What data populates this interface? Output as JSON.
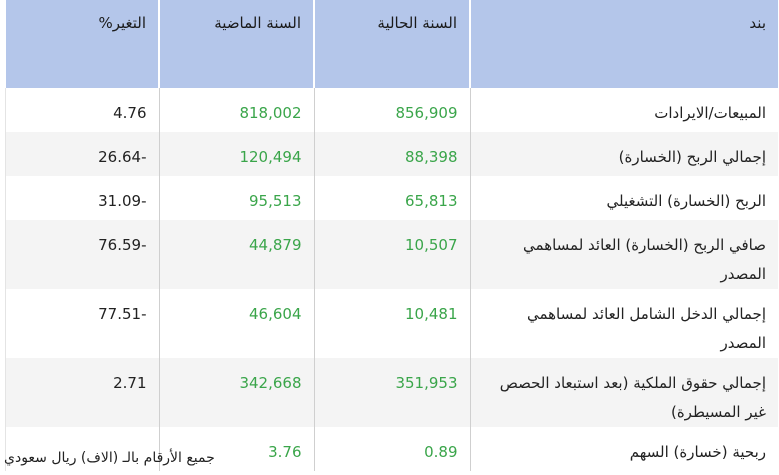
{
  "headers": {
    "item": "بند",
    "current": "السنة الحالية",
    "previous": "السنة الماضية",
    "change": "التغير%"
  },
  "rows": [
    {
      "item": "المبيعات/الايرادات",
      "current": "856,909",
      "previous": "818,002",
      "change": "4.76"
    },
    {
      "item": "إجمالي الربح (الخسارة)",
      "current": "88,398",
      "previous": "120,494",
      "change": "26.64-"
    },
    {
      "item": "الربح (الخسارة) التشغيلي",
      "current": "65,813",
      "previous": "95,513",
      "change": "31.09-"
    },
    {
      "item": "صافي الربح (الخسارة) العائد لمساهمي المصدر",
      "current": "10,507",
      "previous": "44,879",
      "change": "76.59-"
    },
    {
      "item": "إجمالي الدخل الشامل العائد لمساهمي المصدر",
      "current": "10,481",
      "previous": "46,604",
      "change": "77.51-"
    },
    {
      "item": "إجمالي حقوق الملكية (بعد استبعاد الحصص غير المسيطرة)",
      "current": "351,953",
      "previous": "342,668",
      "change": "2.71"
    },
    {
      "item": "ربحية (خسارة) السهم",
      "current": "0.89",
      "previous": "3.76",
      "change": ""
    }
  ],
  "footnote": "جميع الأرقام بالـ (الاف) ريال سعودي",
  "colors": {
    "header_bg": "#b4c6ea",
    "value_green": "#3aa54a",
    "alt_row": "#f4f4f4"
  }
}
